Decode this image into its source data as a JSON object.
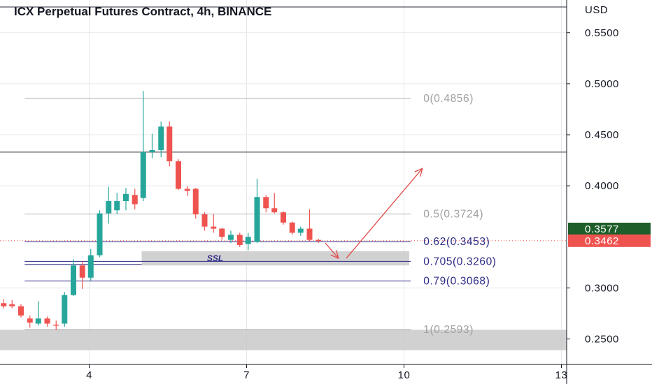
{
  "chart_data": {
    "type": "candlestick",
    "title": "ICX Perpetual Futures Contract, 4h, BINANCE",
    "currency": "USD",
    "y_ticks": [
      "0.5500",
      "0.5000",
      "0.4500",
      "0.4000",
      "0.3000",
      "0.2500"
    ],
    "ylim": [
      0.225,
      0.582
    ],
    "x_ticks": [
      "4",
      "7",
      "10",
      "13"
    ],
    "x_tick_values": [
      4,
      7,
      10,
      13
    ],
    "xlim": [
      2.3,
      13.1
    ],
    "candles": [
      {
        "t": 2.37,
        "o": 0.285,
        "h": 0.289,
        "l": 0.28,
        "c": 0.282
      },
      {
        "t": 2.53,
        "o": 0.284,
        "h": 0.288,
        "l": 0.28,
        "c": 0.282
      },
      {
        "t": 2.7,
        "o": 0.282,
        "h": 0.284,
        "l": 0.271,
        "c": 0.273
      },
      {
        "t": 2.87,
        "o": 0.27,
        "h": 0.273,
        "l": 0.261,
        "c": 0.266
      },
      {
        "t": 3.03,
        "o": 0.265,
        "h": 0.287,
        "l": 0.263,
        "c": 0.27
      },
      {
        "t": 3.2,
        "o": 0.27,
        "h": 0.272,
        "l": 0.262,
        "c": 0.265
      },
      {
        "t": 3.37,
        "o": 0.264,
        "h": 0.268,
        "l": 0.259,
        "c": 0.263
      },
      {
        "t": 3.53,
        "o": 0.265,
        "h": 0.296,
        "l": 0.262,
        "c": 0.293
      },
      {
        "t": 3.7,
        "o": 0.293,
        "h": 0.328,
        "l": 0.292,
        "c": 0.322
      },
      {
        "t": 3.87,
        "o": 0.322,
        "h": 0.326,
        "l": 0.299,
        "c": 0.31
      },
      {
        "t": 4.03,
        "o": 0.31,
        "h": 0.338,
        "l": 0.307,
        "c": 0.332
      },
      {
        "t": 4.2,
        "o": 0.332,
        "h": 0.376,
        "l": 0.33,
        "c": 0.373
      },
      {
        "t": 4.37,
        "o": 0.373,
        "h": 0.399,
        "l": 0.363,
        "c": 0.385
      },
      {
        "t": 4.53,
        "o": 0.376,
        "h": 0.393,
        "l": 0.372,
        "c": 0.385
      },
      {
        "t": 4.7,
        "o": 0.385,
        "h": 0.398,
        "l": 0.376,
        "c": 0.392
      },
      {
        "t": 4.87,
        "o": 0.391,
        "h": 0.397,
        "l": 0.377,
        "c": 0.382
      },
      {
        "t": 5.03,
        "o": 0.388,
        "h": 0.493,
        "l": 0.385,
        "c": 0.433
      },
      {
        "t": 5.2,
        "o": 0.433,
        "h": 0.451,
        "l": 0.427,
        "c": 0.435
      },
      {
        "t": 5.37,
        "o": 0.435,
        "h": 0.463,
        "l": 0.428,
        "c": 0.458
      },
      {
        "t": 5.53,
        "o": 0.458,
        "h": 0.463,
        "l": 0.419,
        "c": 0.424
      },
      {
        "t": 5.7,
        "o": 0.424,
        "h": 0.426,
        "l": 0.396,
        "c": 0.397
      },
      {
        "t": 5.87,
        "o": 0.397,
        "h": 0.4,
        "l": 0.39,
        "c": 0.395
      },
      {
        "t": 6.03,
        "o": 0.397,
        "h": 0.398,
        "l": 0.368,
        "c": 0.372
      },
      {
        "t": 6.2,
        "o": 0.372,
        "h": 0.374,
        "l": 0.356,
        "c": 0.36
      },
      {
        "t": 6.37,
        "o": 0.36,
        "h": 0.372,
        "l": 0.354,
        "c": 0.358
      },
      {
        "t": 6.53,
        "o": 0.358,
        "h": 0.359,
        "l": 0.347,
        "c": 0.35
      },
      {
        "t": 6.7,
        "o": 0.347,
        "h": 0.356,
        "l": 0.344,
        "c": 0.352
      },
      {
        "t": 6.87,
        "o": 0.352,
        "h": 0.354,
        "l": 0.34,
        "c": 0.342
      },
      {
        "t": 7.03,
        "o": 0.343,
        "h": 0.354,
        "l": 0.337,
        "c": 0.35
      },
      {
        "t": 7.2,
        "o": 0.345,
        "h": 0.407,
        "l": 0.344,
        "c": 0.389
      },
      {
        "t": 7.37,
        "o": 0.389,
        "h": 0.391,
        "l": 0.374,
        "c": 0.378
      },
      {
        "t": 7.53,
        "o": 0.378,
        "h": 0.393,
        "l": 0.373,
        "c": 0.374
      },
      {
        "t": 7.7,
        "o": 0.374,
        "h": 0.375,
        "l": 0.362,
        "c": 0.364
      },
      {
        "t": 7.87,
        "o": 0.364,
        "h": 0.365,
        "l": 0.352,
        "c": 0.354
      },
      {
        "t": 8.03,
        "o": 0.354,
        "h": 0.36,
        "l": 0.351,
        "c": 0.358
      },
      {
        "t": 8.2,
        "o": 0.358,
        "h": 0.377,
        "l": 0.346,
        "c": 0.347
      },
      {
        "t": 8.37,
        "o": 0.347,
        "h": 0.348,
        "l": 0.344,
        "c": 0.3462
      }
    ],
    "fib_levels": [
      {
        "ratio": 0,
        "price": 0.4856,
        "label": "0(0.4856)",
        "color": "#9e9e9e"
      },
      {
        "ratio": 0.5,
        "price": 0.3724,
        "label": "0.5(0.3724)",
        "color": "#9e9e9e"
      },
      {
        "ratio": 0.62,
        "price": 0.3453,
        "label": "0.62(0.3453)",
        "color": "#2c2a85"
      },
      {
        "ratio": 0.705,
        "price": 0.326,
        "label": "0.705(0.3260)",
        "color": "#2c2a85"
      },
      {
        "ratio": 0.79,
        "price": 0.3068,
        "label": "0.79(0.3068)",
        "color": "#2c2a85"
      },
      {
        "ratio": 1,
        "price": 0.2593,
        "label": "1(0.2593)",
        "color": "#9e9e9e"
      }
    ],
    "ssl_label": "SSL",
    "zones": [
      {
        "name": "ssl-zone",
        "x_from": 5.0,
        "x_to": 10.1,
        "y_from": 0.322,
        "y_to": 0.336
      },
      {
        "name": "bottom-zone",
        "x_from": 2.3,
        "x_to": 13.1,
        "y_from": 0.239,
        "y_to": 0.259
      }
    ],
    "horizontal_lines": [
      {
        "name": "resistance-line",
        "price": 0.433
      },
      {
        "name": "current-price-line",
        "price": 0.3462
      }
    ],
    "price_tags": [
      {
        "name": "tag-price-upper",
        "label": "0.3577",
        "price": 0.3577,
        "color": "#1d5e2a"
      },
      {
        "name": "tag-price-current",
        "label": "0.3462",
        "price": 0.3462,
        "color": "#ef5350"
      }
    ],
    "arrows": [
      {
        "name": "arrow-down",
        "from": {
          "t": 8.5,
          "p": 0.344
        },
        "to": {
          "t": 8.75,
          "p": 0.329
        }
      },
      {
        "name": "arrow-up",
        "from": {
          "t": 8.9,
          "p": 0.329
        },
        "to": {
          "t": 10.35,
          "p": 0.417
        }
      }
    ],
    "colors": {
      "up": "#26a69a",
      "down": "#ef5350",
      "grid": "#e6e8ec",
      "axis": "#131722",
      "arrow": "#e34a4a"
    }
  }
}
